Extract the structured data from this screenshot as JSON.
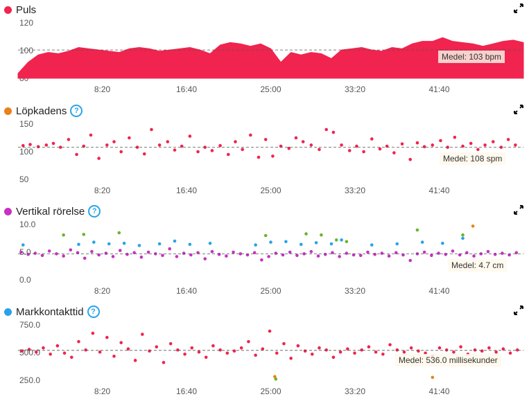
{
  "colors": {
    "accent_red": "#f0244e",
    "orange": "#e8821a",
    "magenta": "#c632c1",
    "blue": "#29a3e8",
    "green": "#6ab42d",
    "help_icon": "#29a3e8"
  },
  "x_ticks": [
    "8:20",
    "16:40",
    "25:00",
    "33:20",
    "41:40"
  ],
  "panels": [
    {
      "id": "puls",
      "title": "Puls",
      "has_help": false,
      "dot_color": "#f0244e",
      "average_label": "Medel: 103 bpm",
      "icons": [
        "expand-icon"
      ]
    },
    {
      "id": "lopkadens",
      "title": "Löpkadens",
      "has_help": true,
      "dot_color": "#e8821a",
      "average_label": "Medel: 108 spm",
      "icons": [
        "help-icon",
        "expand-icon"
      ]
    },
    {
      "id": "vertikal",
      "title": "Vertikal rörelse",
      "has_help": true,
      "dot_color": "#c632c1",
      "average_label": "Medel: 4.7 cm",
      "icons": [
        "help-icon",
        "expand-icon"
      ]
    },
    {
      "id": "markkontakt",
      "title": "Markkontakttid",
      "has_help": true,
      "dot_color": "#29a3e8",
      "average_label": "Medel: 536.0 millisekunder",
      "icons": [
        "help-icon",
        "expand-icon"
      ]
    }
  ],
  "chart_data": [
    {
      "type": "area",
      "title": "Puls",
      "x_unit": "min",
      "xlim_min": [
        0,
        50
      ],
      "x_tick_labels": [
        "8:20",
        "16:40",
        "25:00",
        "33:20",
        "41:40"
      ],
      "y_tick_labels": [
        "120",
        "100",
        "80"
      ],
      "ylim": [
        80,
        125
      ],
      "average": 103,
      "series": [
        {
          "color": "#f0244e",
          "x": [
            0,
            1,
            2,
            3,
            4,
            5,
            6,
            7,
            8,
            9,
            10,
            11,
            12,
            13,
            14,
            15,
            16,
            17,
            18,
            19,
            20,
            21,
            22,
            23,
            24,
            25,
            26,
            27,
            28,
            29,
            30,
            31,
            32,
            33,
            34,
            35,
            36,
            37,
            38,
            39,
            40,
            41,
            42,
            43,
            44,
            45,
            46,
            47,
            48,
            49,
            50
          ],
          "values": [
            84,
            93,
            99,
            101,
            100,
            102,
            105,
            104,
            103,
            102,
            101,
            104,
            105,
            104,
            102,
            103,
            104,
            105,
            103,
            100,
            107,
            109,
            108,
            106,
            108,
            104,
            93,
            101,
            99,
            101,
            100,
            96,
            103,
            104,
            105,
            103,
            102,
            105,
            104,
            108,
            110,
            110,
            113,
            110,
            109,
            108,
            106,
            108,
            110,
            111,
            109
          ]
        }
      ]
    },
    {
      "type": "scatter",
      "title": "Löpkadens",
      "x_unit": "min",
      "xlim_min": [
        0,
        50
      ],
      "x_tick_labels": [
        "8:20",
        "16:40",
        "25:00",
        "33:20",
        "41:40"
      ],
      "y_tick_labels": [
        "150",
        "100",
        "50"
      ],
      "ylim": [
        50,
        150
      ],
      "average": 108,
      "series": [
        {
          "color": "#f0244e",
          "x": [
            0.5,
            1.2,
            2.0,
            2.8,
            3.5,
            4.2,
            5.0,
            5.8,
            6.5,
            7.2,
            8.0,
            8.8,
            9.5,
            10.2,
            11.0,
            11.8,
            12.5,
            13.2,
            14.0,
            14.8,
            15.5,
            16.2,
            17.0,
            17.8,
            18.5,
            19.2,
            20.0,
            20.8,
            21.5,
            22.2,
            23.0,
            23.8,
            24.5,
            25.2,
            26.0,
            26.8,
            27.5,
            28.2,
            29.0,
            29.8,
            30.5,
            31.2,
            32.0,
            32.8,
            33.5,
            34.2,
            35.0,
            35.8,
            36.5,
            37.2,
            38.0,
            38.8,
            39.5,
            40.2,
            41.0,
            41.8,
            42.5,
            43.2,
            44.0,
            44.8,
            45.5,
            46.2,
            47.0,
            47.8,
            48.5,
            49.2
          ],
          "values": [
            111,
            113,
            109,
            112,
            115,
            108,
            122,
            95,
            110,
            130,
            88,
            112,
            118,
            100,
            125,
            108,
            96,
            140,
            112,
            118,
            103,
            110,
            128,
            100,
            108,
            102,
            111,
            95,
            118,
            104,
            130,
            90,
            122,
            92,
            110,
            106,
            125,
            118,
            112,
            104,
            140,
            135,
            112,
            102,
            110,
            100,
            123,
            105,
            110,
            98,
            114,
            86,
            116,
            109,
            112,
            120,
            108,
            126,
            110,
            115,
            104,
            112,
            118,
            108,
            122,
            112
          ]
        }
      ]
    },
    {
      "type": "scatter",
      "title": "Vertikal rörelse",
      "x_unit": "min",
      "xlim_min": [
        0,
        50
      ],
      "x_tick_labels": [
        "8:20",
        "16:40",
        "25:00",
        "33:20",
        "41:40"
      ],
      "y_tick_labels": [
        "10.0",
        "5.0",
        "0.0"
      ],
      "ylim": [
        0,
        10
      ],
      "average": 4.7,
      "series": [
        {
          "color": "#c632c1",
          "x": [
            0.3,
            1.0,
            1.7,
            2.4,
            3.1,
            3.8,
            4.5,
            5.2,
            5.9,
            6.6,
            7.3,
            8.0,
            8.7,
            9.4,
            10.1,
            10.8,
            11.5,
            12.2,
            12.9,
            13.6,
            14.3,
            15.0,
            15.7,
            16.4,
            17.1,
            17.8,
            18.5,
            19.2,
            19.9,
            20.6,
            21.3,
            22.0,
            22.7,
            23.4,
            24.1,
            24.8,
            25.5,
            26.2,
            26.9,
            27.6,
            28.3,
            29.0,
            29.7,
            30.4,
            31.1,
            31.8,
            32.5,
            33.2,
            33.9,
            34.6,
            35.3,
            36.0,
            36.7,
            37.4,
            38.1,
            38.8,
            39.5,
            40.2,
            40.9,
            41.6,
            42.3,
            43.0,
            43.7,
            44.4,
            45.1,
            45.8,
            46.5,
            47.2,
            47.9,
            48.6,
            49.3
          ],
          "values": [
            5.0,
            4.6,
            4.8,
            4.4,
            5.2,
            4.7,
            4.3,
            5.4,
            4.9,
            3.9,
            5.1,
            4.5,
            4.8,
            4.2,
            5.3,
            4.6,
            4.9,
            4.1,
            5.0,
            4.7,
            4.4,
            5.6,
            4.2,
            4.8,
            4.5,
            4.9,
            3.8,
            5.1,
            4.6,
            4.3,
            5.0,
            4.7,
            4.5,
            4.9,
            3.6,
            4.2,
            4.8,
            4.5,
            5.0,
            4.4,
            4.7,
            5.1,
            4.3,
            4.6,
            4.9,
            4.2,
            4.8,
            4.5,
            4.4,
            5.0,
            4.6,
            4.8,
            4.3,
            4.9,
            4.5,
            3.5,
            4.7,
            5.0,
            4.4,
            4.8,
            4.6,
            5.2,
            4.5,
            4.9,
            4.3,
            4.7,
            5.1,
            4.6,
            4.8,
            4.5,
            4.9
          ]
        },
        {
          "color": "#29a3e8",
          "x": [
            0.5,
            6.0,
            7.5,
            9.0,
            10.5,
            12.0,
            14.0,
            15.5,
            17.0,
            19.0,
            23.5,
            25.0,
            26.5,
            28.0,
            29.5,
            31.0,
            32.0,
            35.0,
            37.5,
            40.0,
            42.0,
            44.0
          ],
          "values": [
            6.3,
            6.4,
            6.8,
            6.5,
            6.6,
            6.2,
            6.5,
            7.0,
            6.4,
            6.6,
            6.3,
            6.8,
            6.9,
            6.4,
            6.7,
            6.5,
            7.2,
            6.3,
            6.5,
            6.8,
            6.6,
            7.5
          ]
        },
        {
          "color": "#6ab42d",
          "x": [
            4.5,
            6.5,
            10.0,
            24.5,
            28.5,
            30.0,
            31.5,
            32.5,
            39.5,
            44.0
          ],
          "values": [
            8.1,
            8.2,
            8.5,
            8.0,
            8.3,
            8.1,
            7.2,
            6.9,
            9.0,
            8.1
          ]
        },
        {
          "color": "#e8821a",
          "x": [
            45.0
          ],
          "values": [
            9.7
          ]
        }
      ]
    },
    {
      "type": "scatter",
      "title": "Markkontakttid",
      "x_unit": "min",
      "xlim_min": [
        0,
        50
      ],
      "x_tick_labels": [
        "8:20",
        "16:40",
        "25:00",
        "33:20",
        "41:40"
      ],
      "y_tick_labels": [
        "750.0",
        "500.0",
        "250.0"
      ],
      "ylim": [
        250,
        780
      ],
      "average": 536,
      "series": [
        {
          "color": "#f0244e",
          "x": [
            0.4,
            1.1,
            1.8,
            2.5,
            3.2,
            3.9,
            4.6,
            5.3,
            6.0,
            6.7,
            7.4,
            8.1,
            8.8,
            9.5,
            10.2,
            10.9,
            11.6,
            12.3,
            13.0,
            13.7,
            14.4,
            15.1,
            15.8,
            16.5,
            17.2,
            17.9,
            18.6,
            19.3,
            20.0,
            20.7,
            21.4,
            22.1,
            22.8,
            23.5,
            24.2,
            24.9,
            25.6,
            26.3,
            27.0,
            27.7,
            28.4,
            29.1,
            29.8,
            30.5,
            31.2,
            31.9,
            32.6,
            33.3,
            34.0,
            34.7,
            35.4,
            36.1,
            36.8,
            37.5,
            38.2,
            38.9,
            39.6,
            40.3,
            41.0,
            41.7,
            42.4,
            43.1,
            43.8,
            44.5,
            45.2,
            45.9,
            46.6,
            47.3,
            48.0,
            48.7,
            49.4
          ],
          "values": [
            530,
            545,
            520,
            560,
            500,
            580,
            510,
            470,
            620,
            540,
            700,
            520,
            660,
            480,
            610,
            550,
            440,
            690,
            530,
            570,
            420,
            600,
            540,
            500,
            560,
            520,
            470,
            580,
            540,
            510,
            530,
            560,
            620,
            490,
            550,
            720,
            510,
            600,
            460,
            580,
            530,
            500,
            560,
            540,
            470,
            520,
            550,
            510,
            540,
            570,
            520,
            500,
            590,
            540,
            520,
            560,
            530,
            510,
            480,
            560,
            540,
            520,
            570,
            500,
            540,
            530,
            560,
            520,
            550,
            510,
            540
          ]
        },
        {
          "color": "#6ab42d",
          "x": [
            25.5
          ],
          "values": [
            262
          ]
        },
        {
          "color": "#e8821a",
          "x": [
            25.4,
            41.0
          ],
          "values": [
            285,
            278
          ]
        }
      ]
    }
  ]
}
